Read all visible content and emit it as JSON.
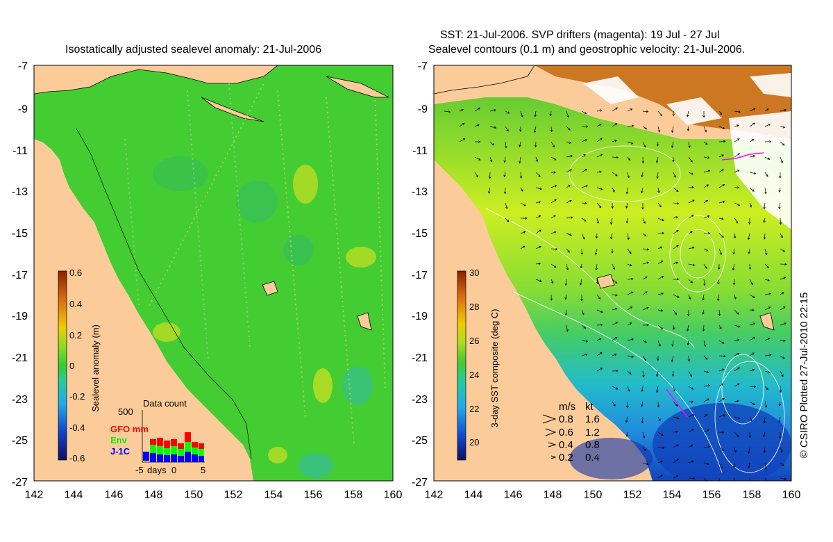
{
  "left_panel": {
    "title": "Isostatically adjusted sealevel anomaly: 21-Jul-2006",
    "colorbar": {
      "label": "Sealevel anomaly (m)",
      "ticks": [
        "0.6",
        "0.4",
        "0.2",
        "0",
        "-0.2",
        "-0.4",
        "-0.6"
      ],
      "range": [
        -0.6,
        0.6
      ]
    },
    "inset": {
      "title": "Data count",
      "ymax_label": "500",
      "x_labels": [
        "-5",
        "days",
        "0",
        "5"
      ],
      "legend": [
        {
          "label": "GFO mm",
          "color": "#ff0000"
        },
        {
          "label": "Env",
          "color": "#00ff00"
        },
        {
          "label": "J-1C",
          "color": "#0000ff"
        }
      ]
    }
  },
  "right_panel": {
    "title_line1": "SST: 21-Jul-2006. SVP drifters (magenta): 19 Jul - 27 Jul",
    "title_line2": "Sealevel contours (0.1 m) and geostrophic velocity: 21-Jul-2006.",
    "colorbar": {
      "label": "3-day SST composite (deg C)",
      "ticks": [
        "30",
        "28",
        "26",
        "24",
        "22",
        "20"
      ],
      "range": [
        19,
        30
      ]
    },
    "velocity_legend": {
      "header_ms": "m/s",
      "header_kt": "kt",
      "rows": [
        {
          "ms": "0.8",
          "kt": "1.6"
        },
        {
          "ms": "0.6",
          "kt": "1.2"
        },
        {
          "ms": "0.4",
          "kt": "0.8"
        },
        {
          "ms": "0.2",
          "kt": "0.4"
        }
      ]
    },
    "credit": "© CSIRO Plotted 27-Jul-2010 22:15"
  },
  "axes": {
    "y_ticks": [
      "-7",
      "-9",
      "-11",
      "-13",
      "-15",
      "-17",
      "-19",
      "-21",
      "-23",
      "-25",
      "-27"
    ],
    "x_ticks": [
      "142",
      "144",
      "146",
      "148",
      "150",
      "152",
      "154",
      "156",
      "158",
      "160"
    ]
  },
  "colors": {
    "land": "#fbcc99",
    "sla_ocean": "#33cc33",
    "sst_warm": "#ccee22",
    "sst_mid": "#44cc66",
    "sst_cool": "#22aadd",
    "sst_cold": "#1133aa"
  }
}
